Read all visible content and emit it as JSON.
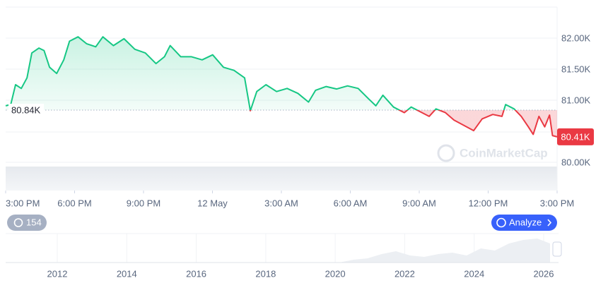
{
  "chart_data": {
    "type": "line",
    "x": [
      0,
      0.22,
      0.43,
      0.68,
      0.93,
      1.14,
      1.45,
      1.67,
      1.91,
      2.22,
      2.53,
      2.78,
      3.15,
      3.52,
      3.92,
      4.23,
      4.69,
      5.15,
      5.62,
      6.08,
      6.54,
      6.91,
      7.16,
      7.62,
      8.09,
      8.55,
      9.01,
      9.48,
      9.94,
      10.4,
      10.65,
      10.93,
      11.33,
      11.79,
      12.25,
      12.72,
      13.18,
      13.49,
      13.95,
      14.41,
      14.88,
      15.34,
      15.8,
      16.11,
      16.42,
      16.88,
      17.35,
      17.65,
      18.12,
      18.43,
      18.73,
      19.14,
      19.51,
      19.97,
      20.37,
      20.74,
      21.2,
      21.6,
      21.76,
      22.13,
      22.44,
      22.75,
      22.96,
      23.21,
      23.46,
      23.67,
      23.8,
      24
    ],
    "series": [
      {
        "color_up": "#16c784",
        "color_down": "#ea3943",
        "values": [
          80.91,
          80.93,
          81.25,
          81.19,
          81.36,
          81.76,
          81.84,
          81.8,
          81.53,
          81.43,
          81.65,
          81.95,
          82.02,
          81.91,
          81.86,
          82.02,
          81.88,
          81.99,
          81.82,
          81.76,
          81.59,
          81.7,
          81.88,
          81.7,
          81.7,
          81.65,
          81.73,
          81.53,
          81.48,
          81.36,
          80.83,
          81.14,
          81.25,
          81.14,
          81.19,
          81.11,
          80.97,
          81.16,
          81.22,
          81.18,
          81.23,
          81.19,
          81.02,
          80.91,
          81.08,
          80.89,
          80.8,
          80.89,
          80.8,
          80.74,
          80.86,
          80.8,
          80.68,
          80.59,
          80.51,
          80.7,
          80.77,
          80.74,
          80.93,
          80.86,
          80.74,
          80.57,
          80.45,
          80.74,
          80.57,
          80.76,
          80.43,
          80.41
        ],
        "value_labels": [
          null,
          null,
          null,
          null,
          null,
          null,
          null,
          null,
          null,
          null,
          null,
          null,
          null,
          null,
          null,
          null,
          null,
          null,
          null,
          null,
          null,
          null,
          null,
          null,
          null,
          null,
          null,
          null,
          null,
          null,
          null,
          null,
          null,
          null,
          null,
          null,
          null,
          null,
          null,
          null,
          null,
          null,
          null,
          null,
          null,
          null,
          null,
          null,
          null,
          null,
          null,
          null,
          null,
          null,
          null,
          null,
          null,
          null,
          null,
          null,
          null,
          null,
          null,
          null,
          null,
          null,
          null,
          "80.41K"
        ]
      }
    ],
    "baseline": {
      "value": 80.84,
      "label": "80.84K"
    },
    "xlim": [
      0,
      24
    ],
    "xticks": [
      {
        "value": 0,
        "label": "3:00 PM"
      },
      {
        "value": 3,
        "label": "6:00 PM"
      },
      {
        "value": 6,
        "label": "9:00 PM"
      },
      {
        "value": 9,
        "label": "12 May"
      },
      {
        "value": 12,
        "label": "3:00 AM"
      },
      {
        "value": 15,
        "label": "6:00 AM"
      },
      {
        "value": 18,
        "label": "9:00 AM"
      },
      {
        "value": 21,
        "label": "12:00 PM"
      },
      {
        "value": 24,
        "label": "3:00 PM"
      }
    ],
    "ylim": [
      79.545,
      82.5
    ],
    "yticks": [
      {
        "value": 80,
        "label": "80.00K"
      },
      {
        "value": 81,
        "label": "81.00K"
      },
      {
        "value": 81.5,
        "label": "81.50K"
      },
      {
        "value": 82,
        "label": "82.00K"
      }
    ],
    "grid": true,
    "watermark": "CoinMarketCap"
  },
  "navigator": {
    "xlim": [
      2012,
      2026
    ],
    "xticks": [
      2012,
      2014,
      2016,
      2018,
      2020,
      2022,
      2024,
      2026
    ]
  },
  "controls": {
    "history_count": 154,
    "analyze": "Analyze"
  }
}
